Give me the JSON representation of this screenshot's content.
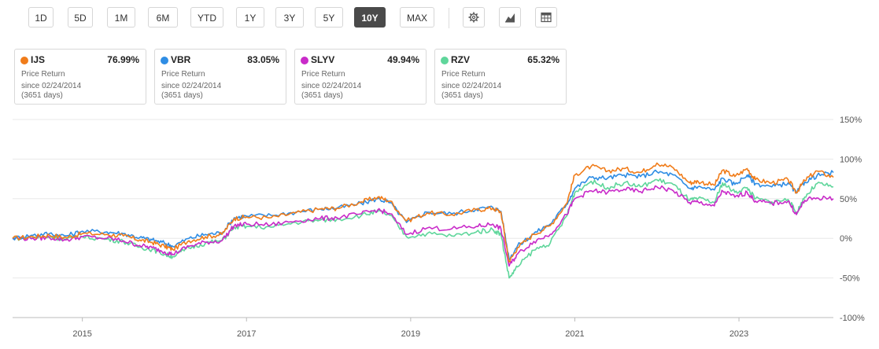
{
  "range_buttons": [
    {
      "label": "1D",
      "active": false
    },
    {
      "label": "5D",
      "active": false
    },
    {
      "label": "1M",
      "active": false
    },
    {
      "label": "6M",
      "active": false
    },
    {
      "label": "YTD",
      "active": false
    },
    {
      "label": "1Y",
      "active": false
    },
    {
      "label": "3Y",
      "active": false
    },
    {
      "label": "5Y",
      "active": false
    },
    {
      "label": "10Y",
      "active": true
    },
    {
      "label": "MAX",
      "active": false
    }
  ],
  "tool_icons": [
    "gear-icon",
    "chart-type-icon",
    "table-icon"
  ],
  "cards": [
    {
      "ticker": "IJS",
      "value": "76.99%",
      "metric": "Price Return",
      "since": "since 02/24/2014",
      "days": "(3651 days)",
      "color": "#f07c1a"
    },
    {
      "ticker": "VBR",
      "value": "83.05%",
      "metric": "Price Return",
      "since": "since 02/24/2014",
      "days": "(3651 days)",
      "color": "#2f8de4"
    },
    {
      "ticker": "SLYV",
      "value": "49.94%",
      "metric": "Price Return",
      "since": "since 02/24/2014",
      "days": "(3651 days)",
      "color": "#c92bc9"
    },
    {
      "ticker": "RZV",
      "value": "65.32%",
      "metric": "Price Return",
      "since": "since 02/24/2014",
      "days": "(3651 days)",
      "color": "#5fd69b"
    }
  ],
  "chart_data": {
    "type": "line",
    "title": "",
    "xlabel": "",
    "ylabel": "",
    "y_axis_position": "right",
    "ylim": [
      -100,
      150
    ],
    "y_ticks": [
      "150%",
      "100%",
      "50%",
      "0%",
      "-50%",
      "-100%"
    ],
    "y_tick_values": [
      150,
      100,
      50,
      0,
      -50,
      -100
    ],
    "xlim": [
      2014.15,
      2024.15
    ],
    "x_ticks": [
      "2015",
      "2017",
      "2019",
      "2021",
      "2023"
    ],
    "x_tick_values": [
      2015,
      2017,
      2019,
      2021,
      2023
    ],
    "grid": true,
    "x": [
      2014.15,
      2014.4,
      2014.6,
      2014.8,
      2015.0,
      2015.3,
      2015.5,
      2015.7,
      2015.85,
      2016.0,
      2016.1,
      2016.3,
      2016.5,
      2016.7,
      2016.85,
      2017.0,
      2017.3,
      2017.6,
      2017.9,
      2018.1,
      2018.4,
      2018.6,
      2018.75,
      2018.95,
      2019.2,
      2019.5,
      2019.8,
      2020.0,
      2020.1,
      2020.2,
      2020.3,
      2020.5,
      2020.7,
      2020.9,
      2021.0,
      2021.2,
      2021.4,
      2021.6,
      2021.8,
      2022.0,
      2022.2,
      2022.4,
      2022.5,
      2022.7,
      2022.8,
      2022.95,
      2023.1,
      2023.2,
      2023.4,
      2023.6,
      2023.7,
      2023.8,
      2023.95,
      2024.15
    ],
    "series": [
      {
        "name": "IJS",
        "color": "#f07c1a",
        "values": [
          0,
          2,
          4,
          1,
          6,
          5,
          3,
          -2,
          -5,
          -10,
          -14,
          -3,
          2,
          5,
          25,
          27,
          26,
          32,
          37,
          38,
          46,
          52,
          47,
          22,
          32,
          30,
          36,
          38,
          33,
          -30,
          -12,
          5,
          16,
          44,
          80,
          91,
          85,
          88,
          83,
          95,
          89,
          70,
          72,
          67,
          86,
          78,
          88,
          74,
          70,
          74,
          58,
          73,
          85,
          77
        ]
      },
      {
        "name": "VBR",
        "color": "#2f8de4",
        "values": [
          0,
          4,
          6,
          3,
          9,
          8,
          6,
          1,
          -2,
          -6,
          -10,
          0,
          5,
          7,
          26,
          28,
          29,
          33,
          37,
          38,
          44,
          50,
          45,
          20,
          33,
          31,
          37,
          39,
          34,
          -26,
          -10,
          6,
          18,
          43,
          63,
          77,
          76,
          80,
          78,
          84,
          80,
          63,
          65,
          61,
          76,
          68,
          80,
          69,
          65,
          70,
          57,
          71,
          79,
          83
        ]
      },
      {
        "name": "SLYV",
        "color": "#c92bc9",
        "values": [
          0,
          0,
          1,
          -2,
          2,
          0,
          -3,
          -9,
          -12,
          -17,
          -20,
          -10,
          -5,
          -3,
          16,
          18,
          17,
          22,
          25,
          26,
          31,
          36,
          31,
          5,
          13,
          12,
          15,
          18,
          12,
          -35,
          -20,
          -4,
          5,
          30,
          50,
          60,
          58,
          62,
          59,
          65,
          60,
          45,
          46,
          41,
          60,
          52,
          58,
          47,
          44,
          47,
          30,
          48,
          51,
          50
        ]
      },
      {
        "name": "RZV",
        "color": "#5fd69b",
        "values": [
          0,
          1,
          2,
          -1,
          2,
          -1,
          -4,
          -11,
          -14,
          -20,
          -23,
          -12,
          -6,
          -3,
          14,
          15,
          14,
          20,
          23,
          24,
          29,
          34,
          29,
          2,
          6,
          3,
          8,
          11,
          5,
          -50,
          -36,
          -15,
          -6,
          28,
          58,
          72,
          64,
          70,
          65,
          74,
          68,
          48,
          50,
          45,
          70,
          58,
          64,
          50,
          46,
          49,
          32,
          52,
          69,
          65
        ]
      }
    ]
  }
}
